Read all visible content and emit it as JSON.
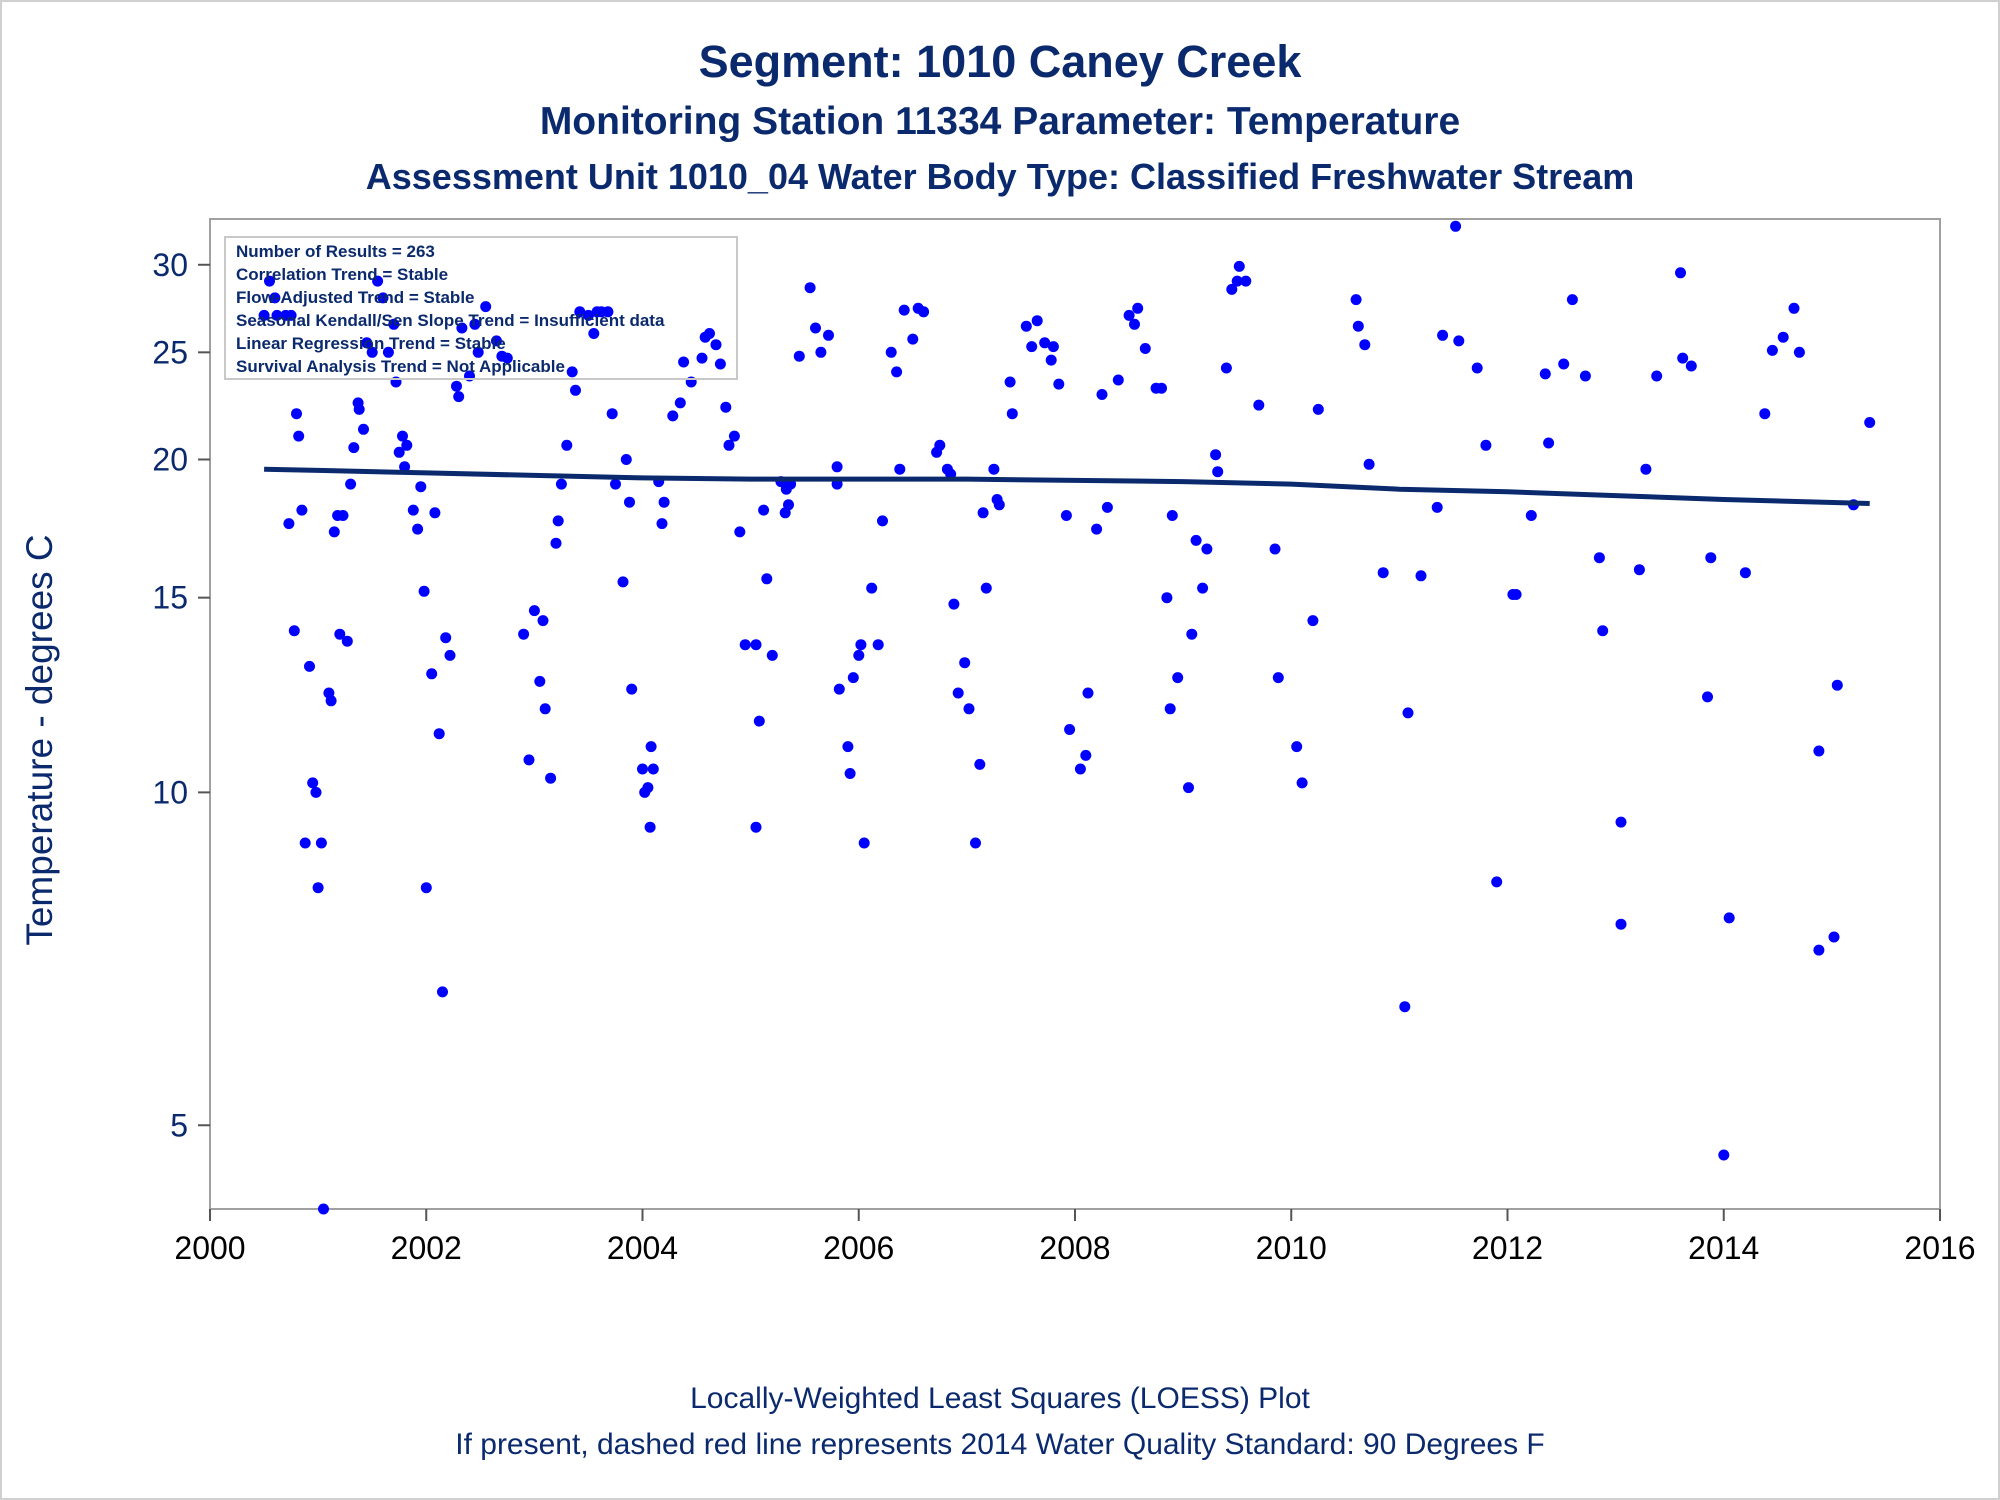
{
  "titles": {
    "line1": "Segment: 1010  Caney Creek",
    "line2": "Monitoring Station 11334 Parameter: Temperature",
    "line3": "Assessment Unit 1010_04   Water Body Type: Classified Freshwater Stream"
  },
  "footnotes": {
    "line1": "Locally-Weighted Least Squares (LOESS) Plot",
    "line2": "If present, dashed red line represents 2014 Water Quality Standard: 90   Degrees F"
  },
  "stats_box": [
    "Number of Results = 263",
    "Correlation Trend = Stable",
    "Flow-Adjusted Trend = Stable",
    "Seasonal Kendall/Sen Slope Trend = Insufficient data",
    "Linear Regression Trend = Stable",
    "Survival Analysis Trend = Not Applicable"
  ],
  "colors": {
    "text": "#0b2a6e",
    "points": "#0000ff",
    "loess_line": "#0b2a6e",
    "frame": "#a0a0a0"
  },
  "chart_data": {
    "type": "scatter",
    "xlabel": "",
    "ylabel": "Temperature - degrees C",
    "y_scale": "log",
    "xlim": [
      2000,
      2016
    ],
    "ylim": [
      4.2,
      33
    ],
    "x_ticks": [
      2000,
      2002,
      2004,
      2006,
      2008,
      2010,
      2012,
      2014,
      2016
    ],
    "y_ticks": [
      5,
      10,
      15,
      20,
      25,
      30
    ],
    "legend": "stats box top-left",
    "series": [
      {
        "marker": "dot",
        "points": [
          [
            2000.5,
            27
          ],
          [
            2000.55,
            29
          ],
          [
            2000.6,
            28
          ],
          [
            2000.62,
            27
          ],
          [
            2000.7,
            27
          ],
          [
            2000.75,
            27
          ],
          [
            2000.73,
            17.5
          ],
          [
            2000.78,
            14
          ],
          [
            2000.8,
            22
          ],
          [
            2000.82,
            21
          ],
          [
            2000.85,
            18
          ],
          [
            2000.88,
            9
          ],
          [
            2000.92,
            13
          ],
          [
            2000.95,
            10.2
          ],
          [
            2000.98,
            10
          ],
          [
            2001.0,
            8.2
          ],
          [
            2001.03,
            9
          ],
          [
            2001.05,
            4.2
          ],
          [
            2001.1,
            12.3
          ],
          [
            2001.12,
            12.1
          ],
          [
            2001.15,
            17.2
          ],
          [
            2001.18,
            17.8
          ],
          [
            2001.2,
            13.9
          ],
          [
            2001.23,
            17.8
          ],
          [
            2001.27,
            13.7
          ],
          [
            2001.3,
            19
          ],
          [
            2001.33,
            20.5
          ],
          [
            2001.37,
            22.5
          ],
          [
            2001.38,
            22.2
          ],
          [
            2001.42,
            21.3
          ],
          [
            2001.45,
            25.5
          ],
          [
            2001.5,
            25
          ],
          [
            2001.55,
            29
          ],
          [
            2001.6,
            28
          ],
          [
            2001.65,
            25
          ],
          [
            2001.7,
            26.5
          ],
          [
            2001.72,
            23.5
          ],
          [
            2001.75,
            20.3
          ],
          [
            2001.78,
            21
          ],
          [
            2001.8,
            19.7
          ],
          [
            2001.82,
            20.6
          ],
          [
            2001.88,
            18
          ],
          [
            2001.92,
            17.3
          ],
          [
            2001.95,
            18.9
          ],
          [
            2001.98,
            15.2
          ],
          [
            2002.0,
            8.2
          ],
          [
            2002.05,
            12.8
          ],
          [
            2002.08,
            17.9
          ],
          [
            2002.12,
            11.3
          ],
          [
            2002.15,
            6.6
          ],
          [
            2002.18,
            13.8
          ],
          [
            2002.22,
            13.3
          ],
          [
            2002.28,
            23.3
          ],
          [
            2002.3,
            22.8
          ],
          [
            2002.33,
            26.3
          ],
          [
            2002.4,
            23.8
          ],
          [
            2002.45,
            26.5
          ],
          [
            2002.48,
            25
          ],
          [
            2002.55,
            27.5
          ],
          [
            2002.65,
            25.6
          ],
          [
            2002.7,
            24.8
          ],
          [
            2002.75,
            24.7
          ],
          [
            2002.9,
            13.9
          ],
          [
            2002.95,
            10.7
          ],
          [
            2003.0,
            14.6
          ],
          [
            2003.05,
            12.6
          ],
          [
            2003.08,
            14.3
          ],
          [
            2003.1,
            11.9
          ],
          [
            2003.15,
            10.3
          ],
          [
            2003.2,
            16.8
          ],
          [
            2003.22,
            17.6
          ],
          [
            2003.25,
            19
          ],
          [
            2003.3,
            20.6
          ],
          [
            2003.35,
            24
          ],
          [
            2003.38,
            23.1
          ],
          [
            2003.42,
            27.2
          ],
          [
            2003.5,
            27
          ],
          [
            2003.55,
            26
          ],
          [
            2003.58,
            27.2
          ],
          [
            2003.62,
            27.2
          ],
          [
            2003.68,
            27.2
          ],
          [
            2003.72,
            22
          ],
          [
            2003.75,
            19
          ],
          [
            2003.82,
            15.5
          ],
          [
            2003.85,
            20
          ],
          [
            2003.88,
            18.3
          ],
          [
            2003.9,
            12.4
          ],
          [
            2004.0,
            10.5
          ],
          [
            2004.02,
            10
          ],
          [
            2004.05,
            10.1
          ],
          [
            2004.07,
            9.3
          ],
          [
            2004.08,
            11
          ],
          [
            2004.1,
            10.5
          ],
          [
            2004.15,
            19.1
          ],
          [
            2004.18,
            17.5
          ],
          [
            2004.2,
            18.3
          ],
          [
            2004.28,
            21.9
          ],
          [
            2004.35,
            22.5
          ],
          [
            2004.38,
            24.5
          ],
          [
            2004.45,
            23.5
          ],
          [
            2004.55,
            24.7
          ],
          [
            2004.58,
            25.8
          ],
          [
            2004.62,
            26
          ],
          [
            2004.68,
            25.4
          ],
          [
            2004.72,
            24.4
          ],
          [
            2004.77,
            22.3
          ],
          [
            2004.8,
            20.6
          ],
          [
            2004.85,
            21
          ],
          [
            2004.9,
            17.2
          ],
          [
            2004.95,
            13.6
          ],
          [
            2005.05,
            13.6
          ],
          [
            2005.08,
            11.6
          ],
          [
            2005.05,
            9.3
          ],
          [
            2005.12,
            18
          ],
          [
            2005.15,
            15.6
          ],
          [
            2005.2,
            13.3
          ],
          [
            2005.28,
            19.1
          ],
          [
            2005.32,
            17.9
          ],
          [
            2005.33,
            18.8
          ],
          [
            2005.35,
            18.2
          ],
          [
            2005.37,
            19
          ],
          [
            2005.45,
            24.8
          ],
          [
            2005.55,
            28.6
          ],
          [
            2005.6,
            26.3
          ],
          [
            2005.65,
            25
          ],
          [
            2005.72,
            25.9
          ],
          [
            2005.8,
            19.7
          ],
          [
            2005.8,
            19
          ],
          [
            2005.82,
            12.4
          ],
          [
            2005.9,
            11
          ],
          [
            2005.92,
            10.4
          ],
          [
            2005.95,
            12.7
          ],
          [
            2006.0,
            13.3
          ],
          [
            2006.02,
            13.6
          ],
          [
            2006.05,
            9
          ],
          [
            2006.12,
            15.3
          ],
          [
            2006.18,
            13.6
          ],
          [
            2006.22,
            17.6
          ],
          [
            2006.3,
            25
          ],
          [
            2006.35,
            24
          ],
          [
            2006.38,
            19.6
          ],
          [
            2006.42,
            27.3
          ],
          [
            2006.5,
            25.7
          ],
          [
            2006.55,
            27.4
          ],
          [
            2006.6,
            27.2
          ],
          [
            2006.72,
            20.3
          ],
          [
            2006.75,
            20.6
          ],
          [
            2006.82,
            19.6
          ],
          [
            2006.85,
            19.4
          ],
          [
            2006.88,
            14.8
          ],
          [
            2006.92,
            12.3
          ],
          [
            2006.98,
            13.1
          ],
          [
            2007.02,
            11.9
          ],
          [
            2007.08,
            9
          ],
          [
            2007.12,
            10.6
          ],
          [
            2007.15,
            17.9
          ],
          [
            2007.18,
            15.3
          ],
          [
            2007.25,
            19.6
          ],
          [
            2007.28,
            18.4
          ],
          [
            2007.3,
            18.2
          ],
          [
            2007.4,
            23.5
          ],
          [
            2007.42,
            22
          ],
          [
            2007.55,
            26.4
          ],
          [
            2007.6,
            25.3
          ],
          [
            2007.65,
            26.7
          ],
          [
            2007.72,
            25.5
          ],
          [
            2007.78,
            24.6
          ],
          [
            2007.8,
            25.3
          ],
          [
            2007.85,
            23.4
          ],
          [
            2007.92,
            17.8
          ],
          [
            2007.95,
            11.4
          ],
          [
            2008.05,
            10.5
          ],
          [
            2008.1,
            10.8
          ],
          [
            2008.12,
            12.3
          ],
          [
            2008.2,
            17.3
          ],
          [
            2008.25,
            22.9
          ],
          [
            2008.3,
            18.1
          ],
          [
            2008.4,
            23.6
          ],
          [
            2008.5,
            27
          ],
          [
            2008.55,
            26.5
          ],
          [
            2008.58,
            27.4
          ],
          [
            2008.65,
            25.2
          ],
          [
            2008.75,
            23.2
          ],
          [
            2008.8,
            23.2
          ],
          [
            2008.85,
            15
          ],
          [
            2008.88,
            11.9
          ],
          [
            2008.9,
            17.8
          ],
          [
            2008.95,
            12.7
          ],
          [
            2009.05,
            10.1
          ],
          [
            2009.08,
            13.9
          ],
          [
            2009.12,
            16.9
          ],
          [
            2009.18,
            15.3
          ],
          [
            2009.22,
            16.6
          ],
          [
            2009.3,
            20.2
          ],
          [
            2009.32,
            19.5
          ],
          [
            2009.4,
            24.2
          ],
          [
            2009.45,
            28.5
          ],
          [
            2009.5,
            29
          ],
          [
            2009.52,
            29.9
          ],
          [
            2009.58,
            29
          ],
          [
            2009.7,
            22.4
          ],
          [
            2009.85,
            16.6
          ],
          [
            2009.88,
            12.7
          ],
          [
            2010.05,
            11
          ],
          [
            2010.1,
            10.2
          ],
          [
            2010.2,
            14.3
          ],
          [
            2010.25,
            22.2
          ],
          [
            2010.6,
            27.9
          ],
          [
            2010.62,
            26.4
          ],
          [
            2010.68,
            25.4
          ],
          [
            2010.72,
            19.8
          ],
          [
            2010.85,
            15.8
          ],
          [
            2011.05,
            6.4
          ],
          [
            2011.08,
            11.8
          ],
          [
            2011.2,
            15.7
          ],
          [
            2011.35,
            18.1
          ],
          [
            2011.4,
            25.9
          ],
          [
            2011.52,
            32.5
          ],
          [
            2011.55,
            25.6
          ],
          [
            2011.72,
            24.2
          ],
          [
            2011.8,
            20.6
          ],
          [
            2011.9,
            8.3
          ],
          [
            2012.05,
            15.1
          ],
          [
            2012.08,
            15.1
          ],
          [
            2012.22,
            17.8
          ],
          [
            2012.35,
            23.9
          ],
          [
            2012.38,
            20.7
          ],
          [
            2012.52,
            24.4
          ],
          [
            2012.6,
            27.9
          ],
          [
            2012.72,
            23.8
          ],
          [
            2012.85,
            16.3
          ],
          [
            2012.88,
            14
          ],
          [
            2013.05,
            9.4
          ],
          [
            2013.05,
            7.6
          ],
          [
            2013.22,
            15.9
          ],
          [
            2013.28,
            19.6
          ],
          [
            2013.38,
            23.8
          ],
          [
            2013.6,
            29.5
          ],
          [
            2013.62,
            24.7
          ],
          [
            2013.7,
            24.3
          ],
          [
            2013.85,
            12.2
          ],
          [
            2013.88,
            16.3
          ],
          [
            2014.0,
            4.7
          ],
          [
            2014.05,
            7.7
          ],
          [
            2014.2,
            15.8
          ],
          [
            2014.38,
            22
          ],
          [
            2014.45,
            25.1
          ],
          [
            2014.55,
            25.8
          ],
          [
            2014.65,
            27.4
          ],
          [
            2014.7,
            25
          ],
          [
            2014.88,
            7.2
          ],
          [
            2014.88,
            10.9
          ],
          [
            2015.02,
            7.4
          ],
          [
            2015.05,
            12.5
          ],
          [
            2015.2,
            18.2
          ],
          [
            2015.35,
            21.6
          ]
        ]
      },
      {
        "marker": "line",
        "points": [
          [
            2000.5,
            19.6
          ],
          [
            2001.0,
            19.55
          ],
          [
            2002.0,
            19.45
          ],
          [
            2003.0,
            19.35
          ],
          [
            2004.0,
            19.25
          ],
          [
            2005.0,
            19.2
          ],
          [
            2006.0,
            19.2
          ],
          [
            2007.0,
            19.2
          ],
          [
            2008.0,
            19.15
          ],
          [
            2009.0,
            19.1
          ],
          [
            2010.0,
            19.0
          ],
          [
            2011.0,
            18.8
          ],
          [
            2012.0,
            18.7
          ],
          [
            2013.0,
            18.55
          ],
          [
            2014.0,
            18.4
          ],
          [
            2015.35,
            18.25
          ]
        ]
      }
    ]
  }
}
